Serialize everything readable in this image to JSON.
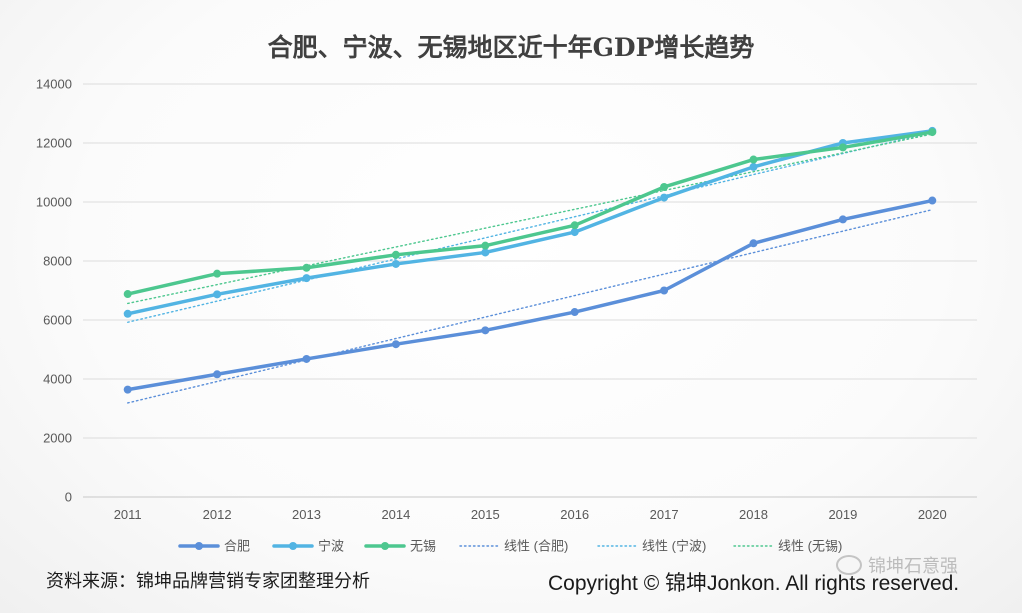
{
  "page": {
    "title": "合肥、宁波、无锡地区近十年GDP增长趋势",
    "source": "资料来源：锦坤品牌营销专家团整理分析",
    "copyright": "Copyright © 锦坤Jonkon. All rights reserved.",
    "watermark": "锦坤石意强"
  },
  "chart_data": {
    "type": "line",
    "title": "合肥、宁波、无锡地区近十年GDP增长趋势",
    "x": [
      "2011",
      "2012",
      "2013",
      "2014",
      "2015",
      "2016",
      "2017",
      "2018",
      "2019",
      "2020"
    ],
    "ylim": [
      0,
      14000
    ],
    "yticks": [
      0,
      2000,
      4000,
      6000,
      8000,
      10000,
      12000,
      14000
    ],
    "grid": true,
    "legend_position": "bottom",
    "series": [
      {
        "name": "合肥",
        "color": "#5b8fd9",
        "values": [
          3640,
          4160,
          4680,
          5180,
          5650,
          6270,
          7000,
          8600,
          9410,
          10050
        ]
      },
      {
        "name": "宁波",
        "color": "#52b4e3",
        "values": [
          6210,
          6870,
          7420,
          7900,
          8290,
          8980,
          10150,
          11190,
          12000,
          12410
        ]
      },
      {
        "name": "无锡",
        "color": "#4dc78f",
        "values": [
          6880,
          7570,
          7770,
          8210,
          8520,
          9210,
          10510,
          11440,
          11850,
          12370
        ]
      }
    ],
    "trendlines": [
      {
        "name": "线性 (合肥)",
        "color": "#5b8fd9"
      },
      {
        "name": "线性 (宁波)",
        "color": "#52b4e3"
      },
      {
        "name": "线性 (无锡)",
        "color": "#4dc78f"
      }
    ]
  }
}
